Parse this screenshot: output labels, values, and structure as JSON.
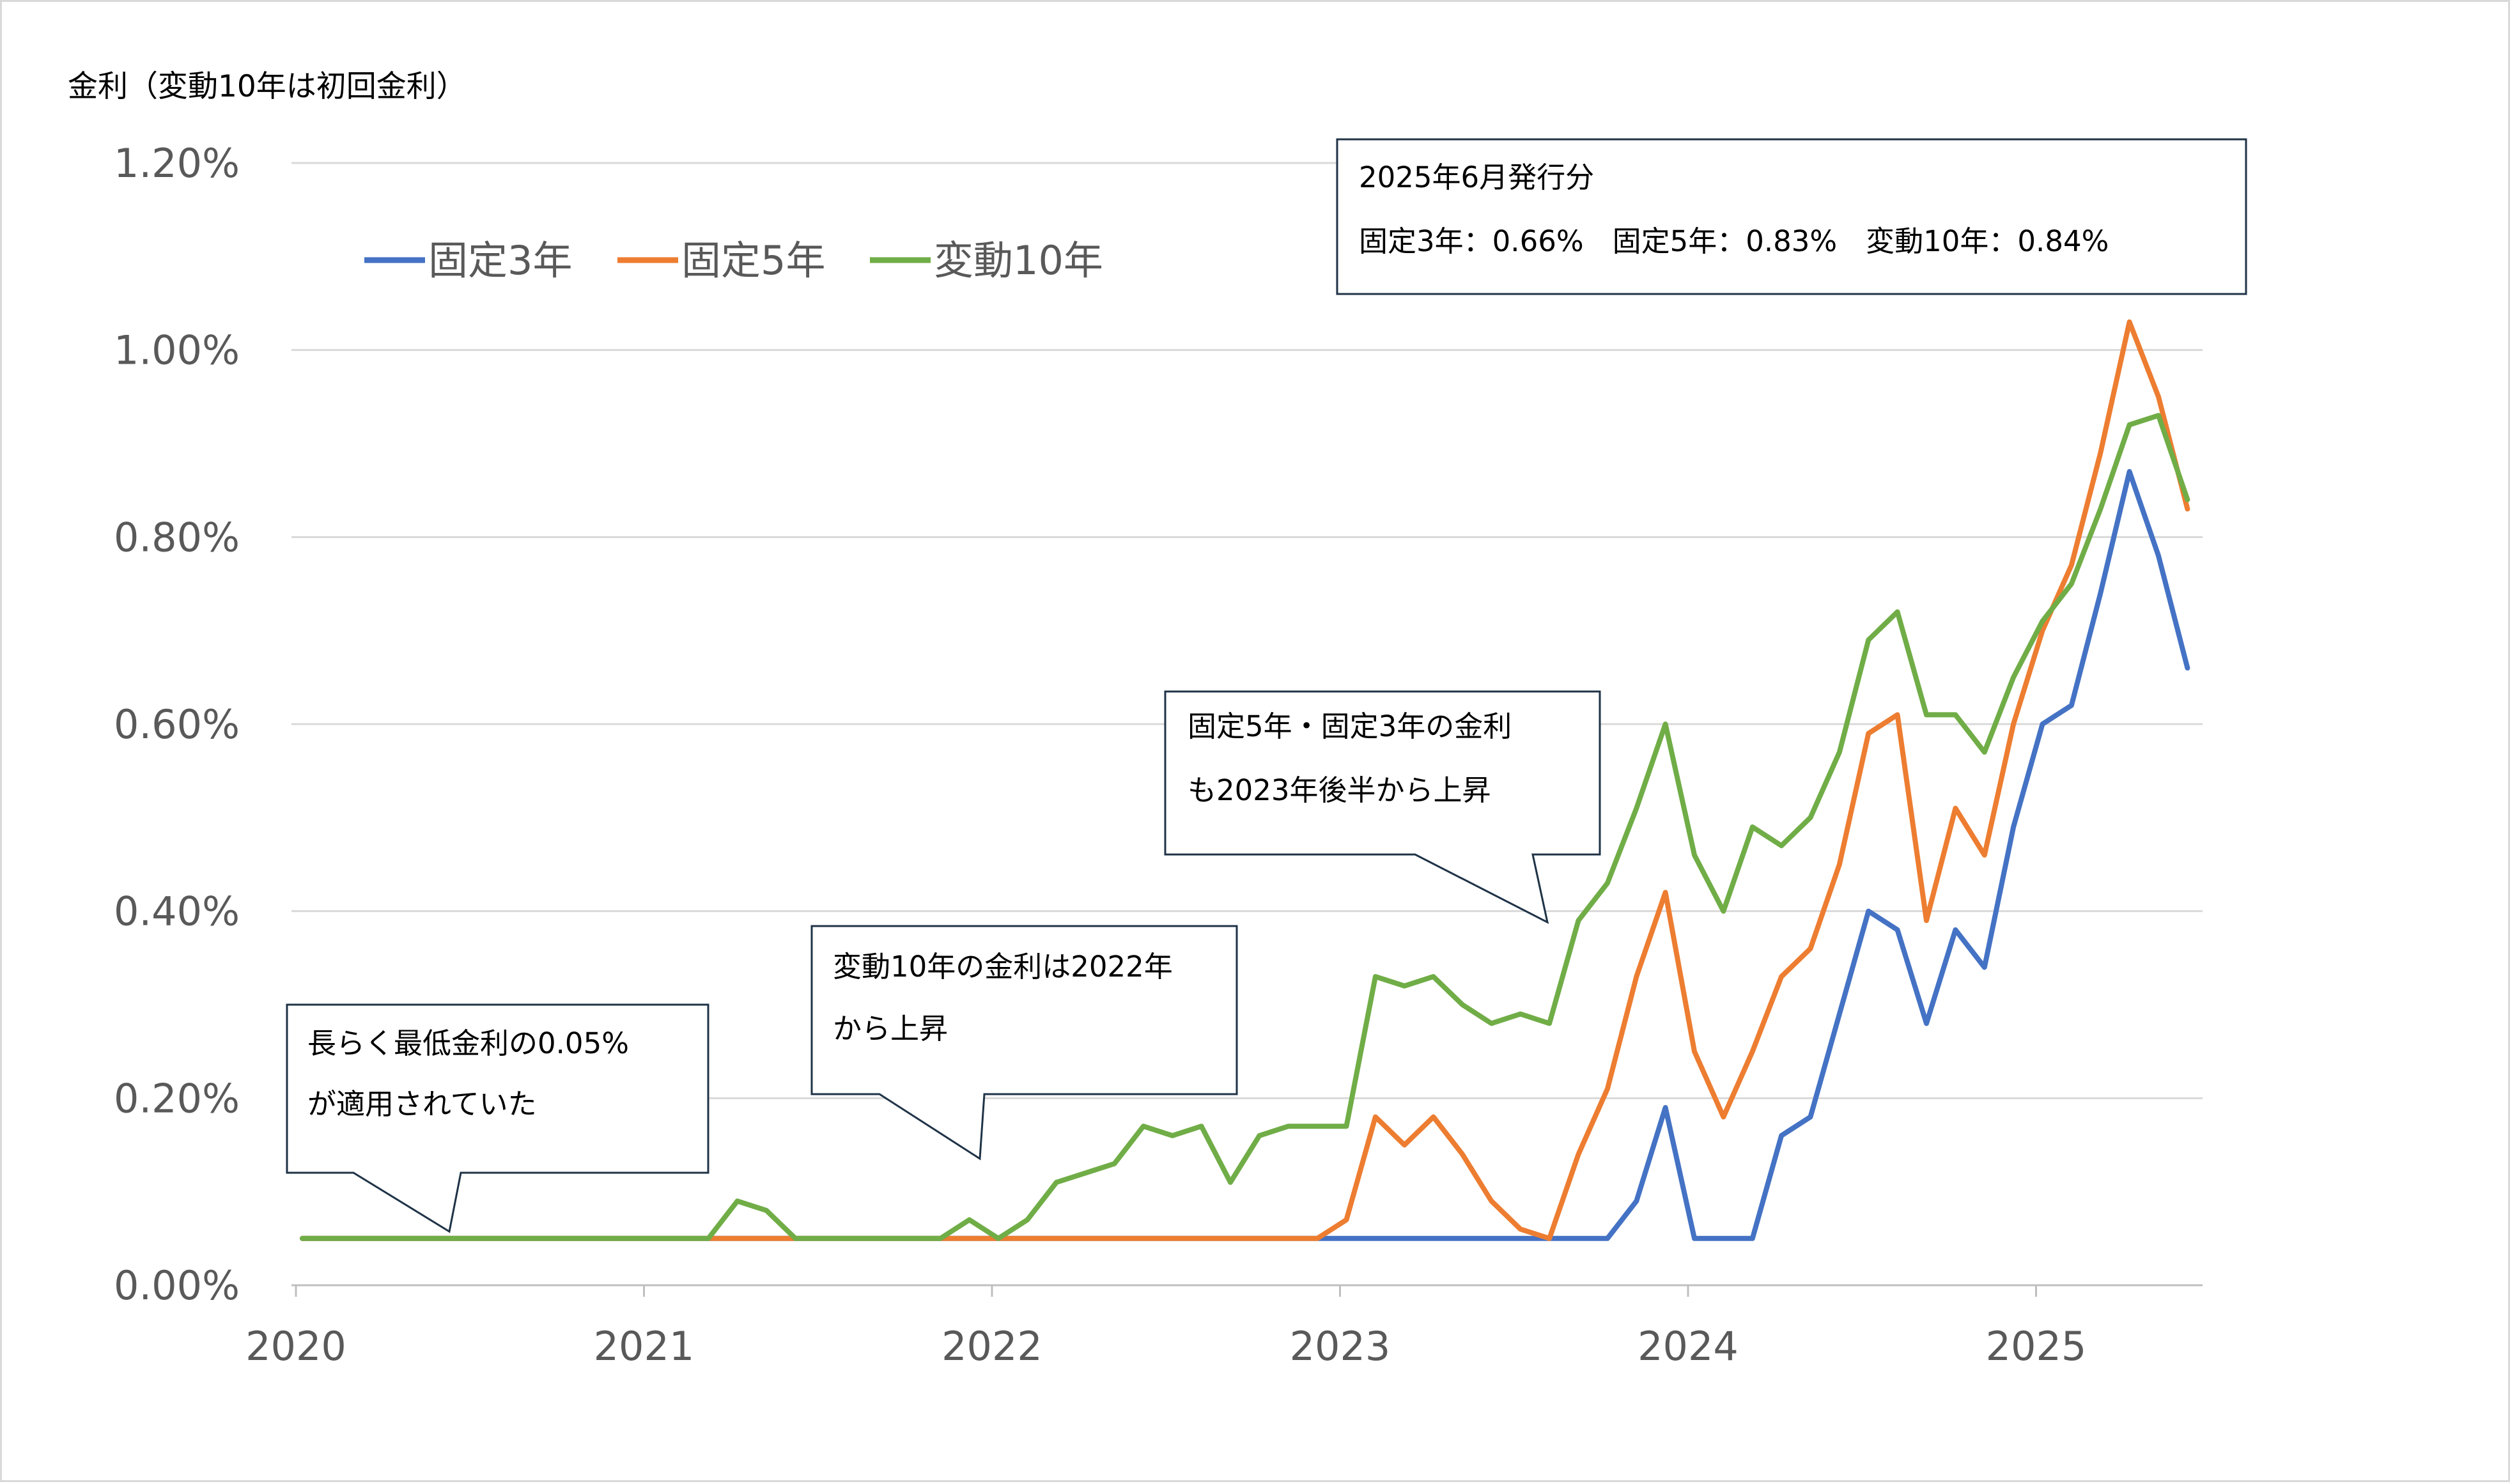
{
  "chart_data": {
    "type": "line",
    "ylabel": "金利（変動10年は初回金利）",
    "ylim": [
      0,
      1.2
    ],
    "y_ticks": [
      "0.00%",
      "0.20%",
      "0.40%",
      "0.60%",
      "0.80%",
      "1.00%",
      "1.20%"
    ],
    "x_ticks": [
      "2020",
      "2021",
      "2022",
      "2023",
      "2024",
      "2025"
    ],
    "x_range": [
      "2020-01",
      "2025-06"
    ],
    "grid": "horizontal",
    "legend_position": "top-left",
    "colors": {
      "fixed3": "#4472c4",
      "fixed5": "#ed7d31",
      "var10": "#70ad47"
    },
    "series": [
      {
        "name": "固定3年",
        "color": "#4472c4",
        "points": [
          [
            "2020-01",
            0.05
          ],
          [
            "2023-10",
            0.05
          ],
          [
            "2023-11",
            0.09
          ],
          [
            "2023-12",
            0.19
          ],
          [
            "2024-01",
            0.05
          ],
          [
            "2024-02",
            0.05
          ],
          [
            "2024-03",
            0.05
          ],
          [
            "2024-04",
            0.16
          ],
          [
            "2024-05",
            0.18
          ],
          [
            "2024-06",
            0.29
          ],
          [
            "2024-07",
            0.4
          ],
          [
            "2024-08",
            0.38
          ],
          [
            "2024-09",
            0.28
          ],
          [
            "2024-10",
            0.38
          ],
          [
            "2024-11",
            0.34
          ],
          [
            "2024-12",
            0.49
          ],
          [
            "2025-01",
            0.6
          ],
          [
            "2025-02",
            0.62
          ],
          [
            "2025-03",
            0.74
          ],
          [
            "2025-04",
            0.87
          ],
          [
            "2025-05",
            0.78
          ],
          [
            "2025-06",
            0.66
          ]
        ]
      },
      {
        "name": "固定5年",
        "color": "#ed7d31",
        "points": [
          [
            "2020-01",
            0.05
          ],
          [
            "2022-12",
            0.05
          ],
          [
            "2023-01",
            0.07
          ],
          [
            "2023-02",
            0.18
          ],
          [
            "2023-03",
            0.15
          ],
          [
            "2023-04",
            0.18
          ],
          [
            "2023-05",
            0.14
          ],
          [
            "2023-06",
            0.09
          ],
          [
            "2023-07",
            0.06
          ],
          [
            "2023-08",
            0.05
          ],
          [
            "2023-09",
            0.14
          ],
          [
            "2023-10",
            0.21
          ],
          [
            "2023-11",
            0.33
          ],
          [
            "2023-12",
            0.42
          ],
          [
            "2024-01",
            0.25
          ],
          [
            "2024-02",
            0.18
          ],
          [
            "2024-03",
            0.25
          ],
          [
            "2024-04",
            0.33
          ],
          [
            "2024-05",
            0.36
          ],
          [
            "2024-06",
            0.45
          ],
          [
            "2024-07",
            0.59
          ],
          [
            "2024-08",
            0.61
          ],
          [
            "2024-09",
            0.39
          ],
          [
            "2024-10",
            0.51
          ],
          [
            "2024-11",
            0.46
          ],
          [
            "2024-12",
            0.6
          ],
          [
            "2025-01",
            0.7
          ],
          [
            "2025-02",
            0.77
          ],
          [
            "2025-03",
            0.89
          ],
          [
            "2025-04",
            1.03
          ],
          [
            "2025-05",
            0.95
          ],
          [
            "2025-06",
            0.83
          ]
        ]
      },
      {
        "name": "変動10年",
        "color": "#70ad47",
        "points": [
          [
            "2020-01",
            0.05
          ],
          [
            "2021-03",
            0.05
          ],
          [
            "2021-04",
            0.09
          ],
          [
            "2021-05",
            0.08
          ],
          [
            "2021-06",
            0.05
          ],
          [
            "2021-11",
            0.05
          ],
          [
            "2021-12",
            0.07
          ],
          [
            "2022-01",
            0.05
          ],
          [
            "2022-02",
            0.07
          ],
          [
            "2022-03",
            0.11
          ],
          [
            "2022-04",
            0.12
          ],
          [
            "2022-05",
            0.13
          ],
          [
            "2022-06",
            0.17
          ],
          [
            "2022-07",
            0.16
          ],
          [
            "2022-08",
            0.17
          ],
          [
            "2022-09",
            0.11
          ],
          [
            "2022-10",
            0.16
          ],
          [
            "2022-11",
            0.17
          ],
          [
            "2022-12",
            0.17
          ],
          [
            "2023-01",
            0.17
          ],
          [
            "2023-02",
            0.33
          ],
          [
            "2023-03",
            0.32
          ],
          [
            "2023-04",
            0.33
          ],
          [
            "2023-05",
            0.3
          ],
          [
            "2023-06",
            0.28
          ],
          [
            "2023-07",
            0.29
          ],
          [
            "2023-08",
            0.28
          ],
          [
            "2023-09",
            0.39
          ],
          [
            "2023-10",
            0.43
          ],
          [
            "2023-11",
            0.51
          ],
          [
            "2023-12",
            0.6
          ],
          [
            "2024-01",
            0.46
          ],
          [
            "2024-02",
            0.4
          ],
          [
            "2024-03",
            0.49
          ],
          [
            "2024-04",
            0.47
          ],
          [
            "2024-05",
            0.5
          ],
          [
            "2024-06",
            0.57
          ],
          [
            "2024-07",
            0.69
          ],
          [
            "2024-08",
            0.72
          ],
          [
            "2024-09",
            0.61
          ],
          [
            "2024-10",
            0.61
          ],
          [
            "2024-11",
            0.57
          ],
          [
            "2024-12",
            0.65
          ],
          [
            "2025-01",
            0.71
          ],
          [
            "2025-02",
            0.75
          ],
          [
            "2025-03",
            0.83
          ],
          [
            "2025-04",
            0.92
          ],
          [
            "2025-05",
            0.93
          ],
          [
            "2025-06",
            0.84
          ]
        ]
      }
    ],
    "annotations": [
      {
        "id": "callout-june-2025",
        "lines": [
          "2025年6月発行分",
          "固定3年：0.66%　固定5年：0.83%　変動10年：0.84%"
        ]
      },
      {
        "id": "callout-fixed-rise",
        "lines": [
          "固定5年・固定3年の金利",
          "も2023年後半から上昇"
        ]
      },
      {
        "id": "callout-var10-rise",
        "lines": [
          "変動10年の金利は2022年",
          "から上昇"
        ]
      },
      {
        "id": "callout-min-rate",
        "lines": [
          "長らく最低金利の0.05%",
          "が適用されていた"
        ]
      }
    ]
  }
}
